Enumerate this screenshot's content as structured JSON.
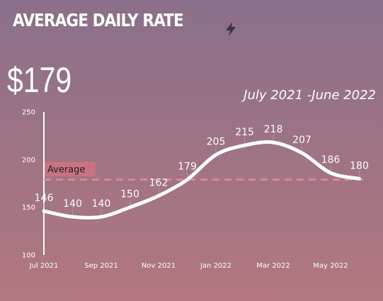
{
  "header": {
    "title": "AVERAGE DAILY RATE",
    "big_value": "$179",
    "period": "July 2021 -June 2022",
    "icon": "lightning-bolt-icon"
  },
  "colors": {
    "line": "#ffffff",
    "average_line": "#e88a93",
    "average_label_bg": "#c8737f",
    "leader": "#9aa0a8"
  },
  "chart_data": {
    "type": "line",
    "title": "AVERAGE DAILY RATE",
    "months": [
      0,
      1,
      2,
      3,
      4,
      5,
      6,
      7,
      8,
      9,
      10,
      11
    ],
    "values": [
      146,
      140,
      140,
      150,
      162,
      179,
      205,
      215,
      218,
      207,
      186,
      180
    ],
    "data_labels": [
      "146",
      "140",
      "140",
      "150",
      "162",
      "179",
      "205",
      "215",
      "218",
      "207",
      "186",
      "180"
    ],
    "x_ticks": [
      {
        "month": 0,
        "label": "Jul 2021"
      },
      {
        "month": 2,
        "label": "Sep 2021"
      },
      {
        "month": 4,
        "label": "Nov 2021"
      },
      {
        "month": 6,
        "label": "Jan 2022"
      },
      {
        "month": 8,
        "label": "Mar 2022"
      },
      {
        "month": 10,
        "label": "May 2022"
      }
    ],
    "y_ticks": [
      100,
      150,
      200,
      250
    ],
    "ylim": [
      100,
      250
    ],
    "average": {
      "value": 179,
      "label": "Average"
    },
    "grid": false
  }
}
